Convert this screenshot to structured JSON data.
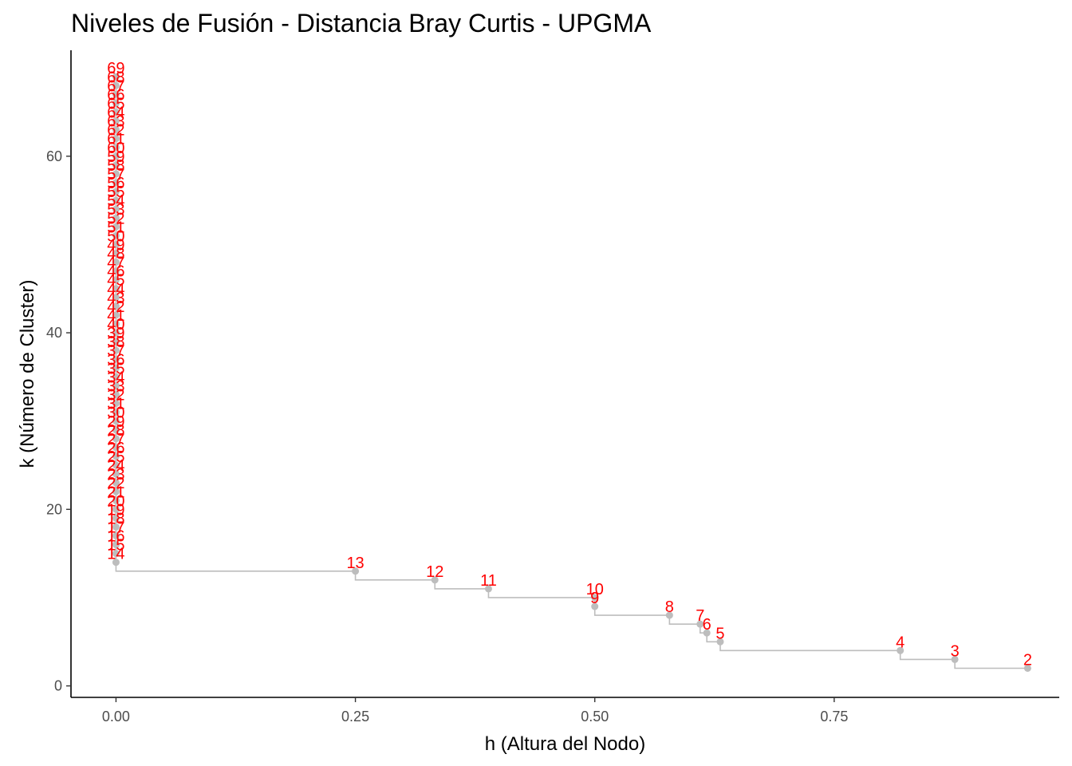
{
  "chart_data": {
    "type": "line",
    "title": "Niveles de Fusión - Distancia Bray Curtis - UPGMA",
    "xlabel": "h (Altura del Nodo)",
    "ylabel": "k (Número de Cluster)",
    "xlim": [
      -0.047,
      0.985
    ],
    "ylim": [
      -1.3,
      72
    ],
    "xticks": [
      0.0,
      0.25,
      0.5,
      0.75
    ],
    "xtick_labels": [
      "0.00",
      "0.25",
      "0.50",
      "0.75"
    ],
    "yticks": [
      0,
      20,
      40,
      60
    ],
    "ytick_labels": [
      "0",
      "20",
      "40",
      "60"
    ],
    "grid": false,
    "step": true,
    "series": [
      {
        "color": "#bdbdbd",
        "label_color": "#ff0000",
        "points": [
          {
            "h": 0.0,
            "k": 69
          },
          {
            "h": 0.0,
            "k": 68
          },
          {
            "h": 0.0,
            "k": 67
          },
          {
            "h": 0.0,
            "k": 66
          },
          {
            "h": 0.0,
            "k": 65
          },
          {
            "h": 0.0,
            "k": 64
          },
          {
            "h": 0.0,
            "k": 63
          },
          {
            "h": 0.0,
            "k": 62
          },
          {
            "h": 0.0,
            "k": 61
          },
          {
            "h": 0.0,
            "k": 60
          },
          {
            "h": 0.0,
            "k": 59
          },
          {
            "h": 0.0,
            "k": 58
          },
          {
            "h": 0.0,
            "k": 57
          },
          {
            "h": 0.0,
            "k": 56
          },
          {
            "h": 0.0,
            "k": 55
          },
          {
            "h": 0.0,
            "k": 54
          },
          {
            "h": 0.0,
            "k": 53
          },
          {
            "h": 0.0,
            "k": 52
          },
          {
            "h": 0.0,
            "k": 51
          },
          {
            "h": 0.0,
            "k": 50
          },
          {
            "h": 0.0,
            "k": 49
          },
          {
            "h": 0.0,
            "k": 48
          },
          {
            "h": 0.0,
            "k": 47
          },
          {
            "h": 0.0,
            "k": 46
          },
          {
            "h": 0.0,
            "k": 45
          },
          {
            "h": 0.0,
            "k": 44
          },
          {
            "h": 0.0,
            "k": 43
          },
          {
            "h": 0.0,
            "k": 42
          },
          {
            "h": 0.0,
            "k": 41
          },
          {
            "h": 0.0,
            "k": 40
          },
          {
            "h": 0.0,
            "k": 39
          },
          {
            "h": 0.0,
            "k": 38
          },
          {
            "h": 0.0,
            "k": 37
          },
          {
            "h": 0.0,
            "k": 36
          },
          {
            "h": 0.0,
            "k": 35
          },
          {
            "h": 0.0,
            "k": 34
          },
          {
            "h": 0.0,
            "k": 33
          },
          {
            "h": 0.0,
            "k": 32
          },
          {
            "h": 0.0,
            "k": 31
          },
          {
            "h": 0.0,
            "k": 30
          },
          {
            "h": 0.0,
            "k": 29
          },
          {
            "h": 0.0,
            "k": 28
          },
          {
            "h": 0.0,
            "k": 27
          },
          {
            "h": 0.0,
            "k": 26
          },
          {
            "h": 0.0,
            "k": 25
          },
          {
            "h": 0.0,
            "k": 24
          },
          {
            "h": 0.0,
            "k": 23
          },
          {
            "h": 0.0,
            "k": 22
          },
          {
            "h": 0.0,
            "k": 21
          },
          {
            "h": 0.0,
            "k": 20
          },
          {
            "h": 0.0,
            "k": 19
          },
          {
            "h": 0.0,
            "k": 18
          },
          {
            "h": 0.0,
            "k": 17
          },
          {
            "h": 0.0,
            "k": 16
          },
          {
            "h": 0.0,
            "k": 15
          },
          {
            "h": 0.0,
            "k": 14
          },
          {
            "h": 0.25,
            "k": 13
          },
          {
            "h": 0.333,
            "k": 12
          },
          {
            "h": 0.389,
            "k": 11
          },
          {
            "h": 0.5,
            "k": 10
          },
          {
            "h": 0.5,
            "k": 9
          },
          {
            "h": 0.578,
            "k": 8
          },
          {
            "h": 0.61,
            "k": 7
          },
          {
            "h": 0.617,
            "k": 6
          },
          {
            "h": 0.631,
            "k": 5
          },
          {
            "h": 0.819,
            "k": 4
          },
          {
            "h": 0.876,
            "k": 3
          },
          {
            "h": 0.952,
            "k": 2
          }
        ]
      }
    ]
  }
}
